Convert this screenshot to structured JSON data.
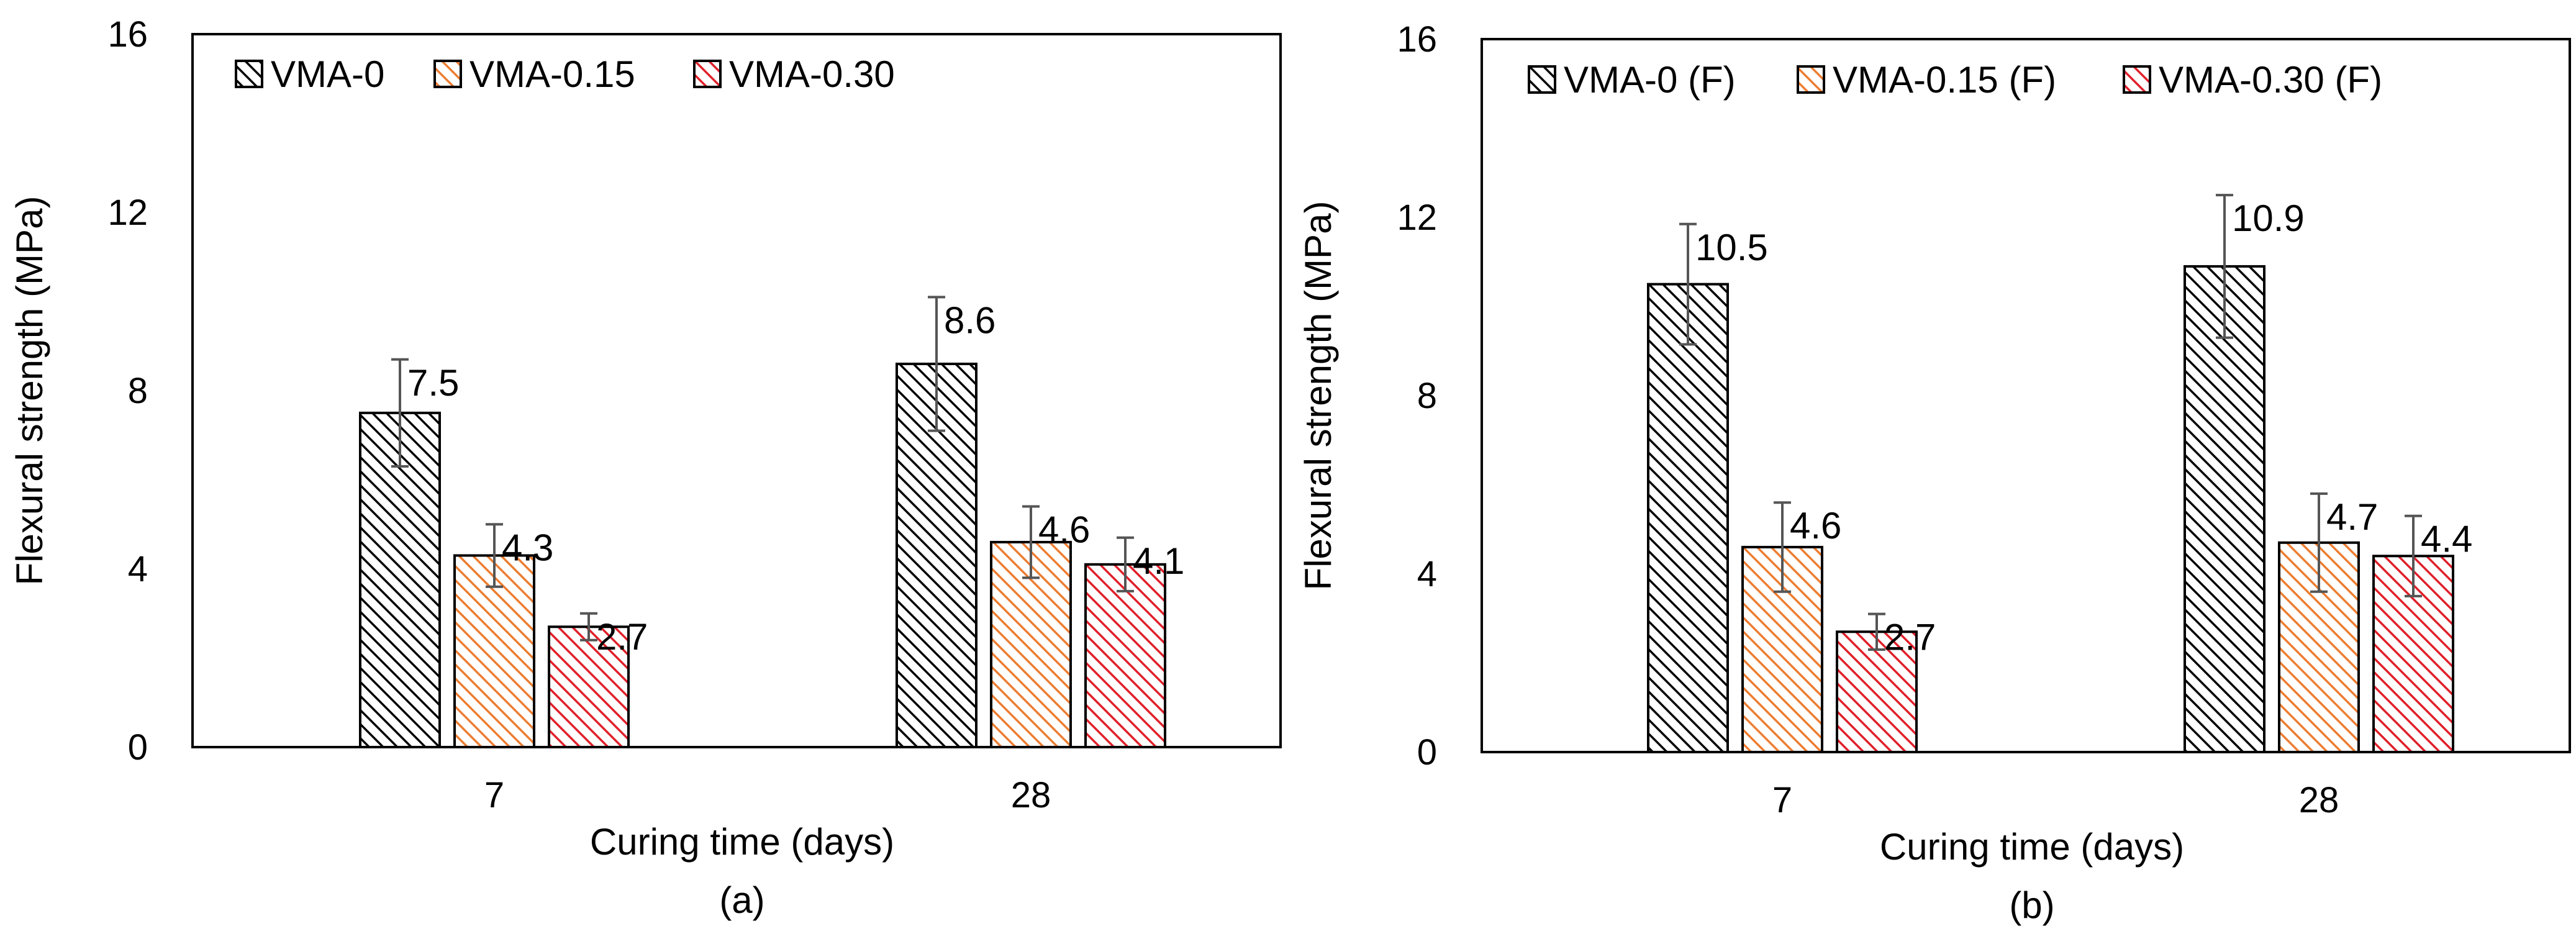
{
  "chart_data": [
    {
      "type": "bar",
      "caption": "(a)",
      "title": "",
      "categories": [
        "7",
        "28"
      ],
      "series": [
        {
          "name": "VMA-0",
          "values": [
            7.5,
            8.6
          ],
          "errors": [
            1.2,
            1.5
          ],
          "labels": [
            "7.5",
            "8.6"
          ]
        },
        {
          "name": "VMA-0.15",
          "values": [
            4.3,
            4.6
          ],
          "errors": [
            0.7,
            0.8
          ],
          "labels": [
            "4.3",
            "4.6"
          ]
        },
        {
          "name": "VMA-0.30",
          "values": [
            2.7,
            4.1
          ],
          "errors": [
            0.3,
            0.6
          ],
          "labels": [
            "2.7",
            "4.1"
          ]
        }
      ],
      "xlabel": "Curing time (days)",
      "ylabel": "Flexural strength (MPa)",
      "ylim": [
        0,
        16
      ],
      "yticks": [
        "0",
        "4",
        "8",
        "12",
        "16"
      ],
      "legend_position": "top-left",
      "grid": false
    },
    {
      "type": "bar",
      "caption": "(b)",
      "title": "",
      "categories": [
        "7",
        "28"
      ],
      "series": [
        {
          "name": "VMA-0 (F)",
          "values": [
            10.5,
            10.9
          ],
          "errors": [
            1.35,
            1.6
          ],
          "labels": [
            "10.5",
            "10.9"
          ]
        },
        {
          "name": "VMA-0.15 (F)",
          "values": [
            4.6,
            4.7
          ],
          "errors": [
            1.0,
            1.1
          ],
          "labels": [
            "4.6",
            "4.7"
          ]
        },
        {
          "name": "VMA-0.30 (F)",
          "values": [
            2.7,
            4.4
          ],
          "errors": [
            0.4,
            0.9
          ],
          "labels": [
            "2.7",
            "4.4"
          ]
        }
      ],
      "xlabel": "Curing time (days)",
      "ylabel": "Flexural strength (MPa)",
      "ylim": [
        0,
        16
      ],
      "yticks": [
        "0",
        "4",
        "8",
        "12",
        "16"
      ],
      "legend_position": "top-left",
      "grid": false
    }
  ],
  "colors": {
    "series": [
      "#000000",
      "#ED7D31",
      "#E0202A"
    ],
    "axis": "#000000",
    "error_bar": "#555555"
  }
}
